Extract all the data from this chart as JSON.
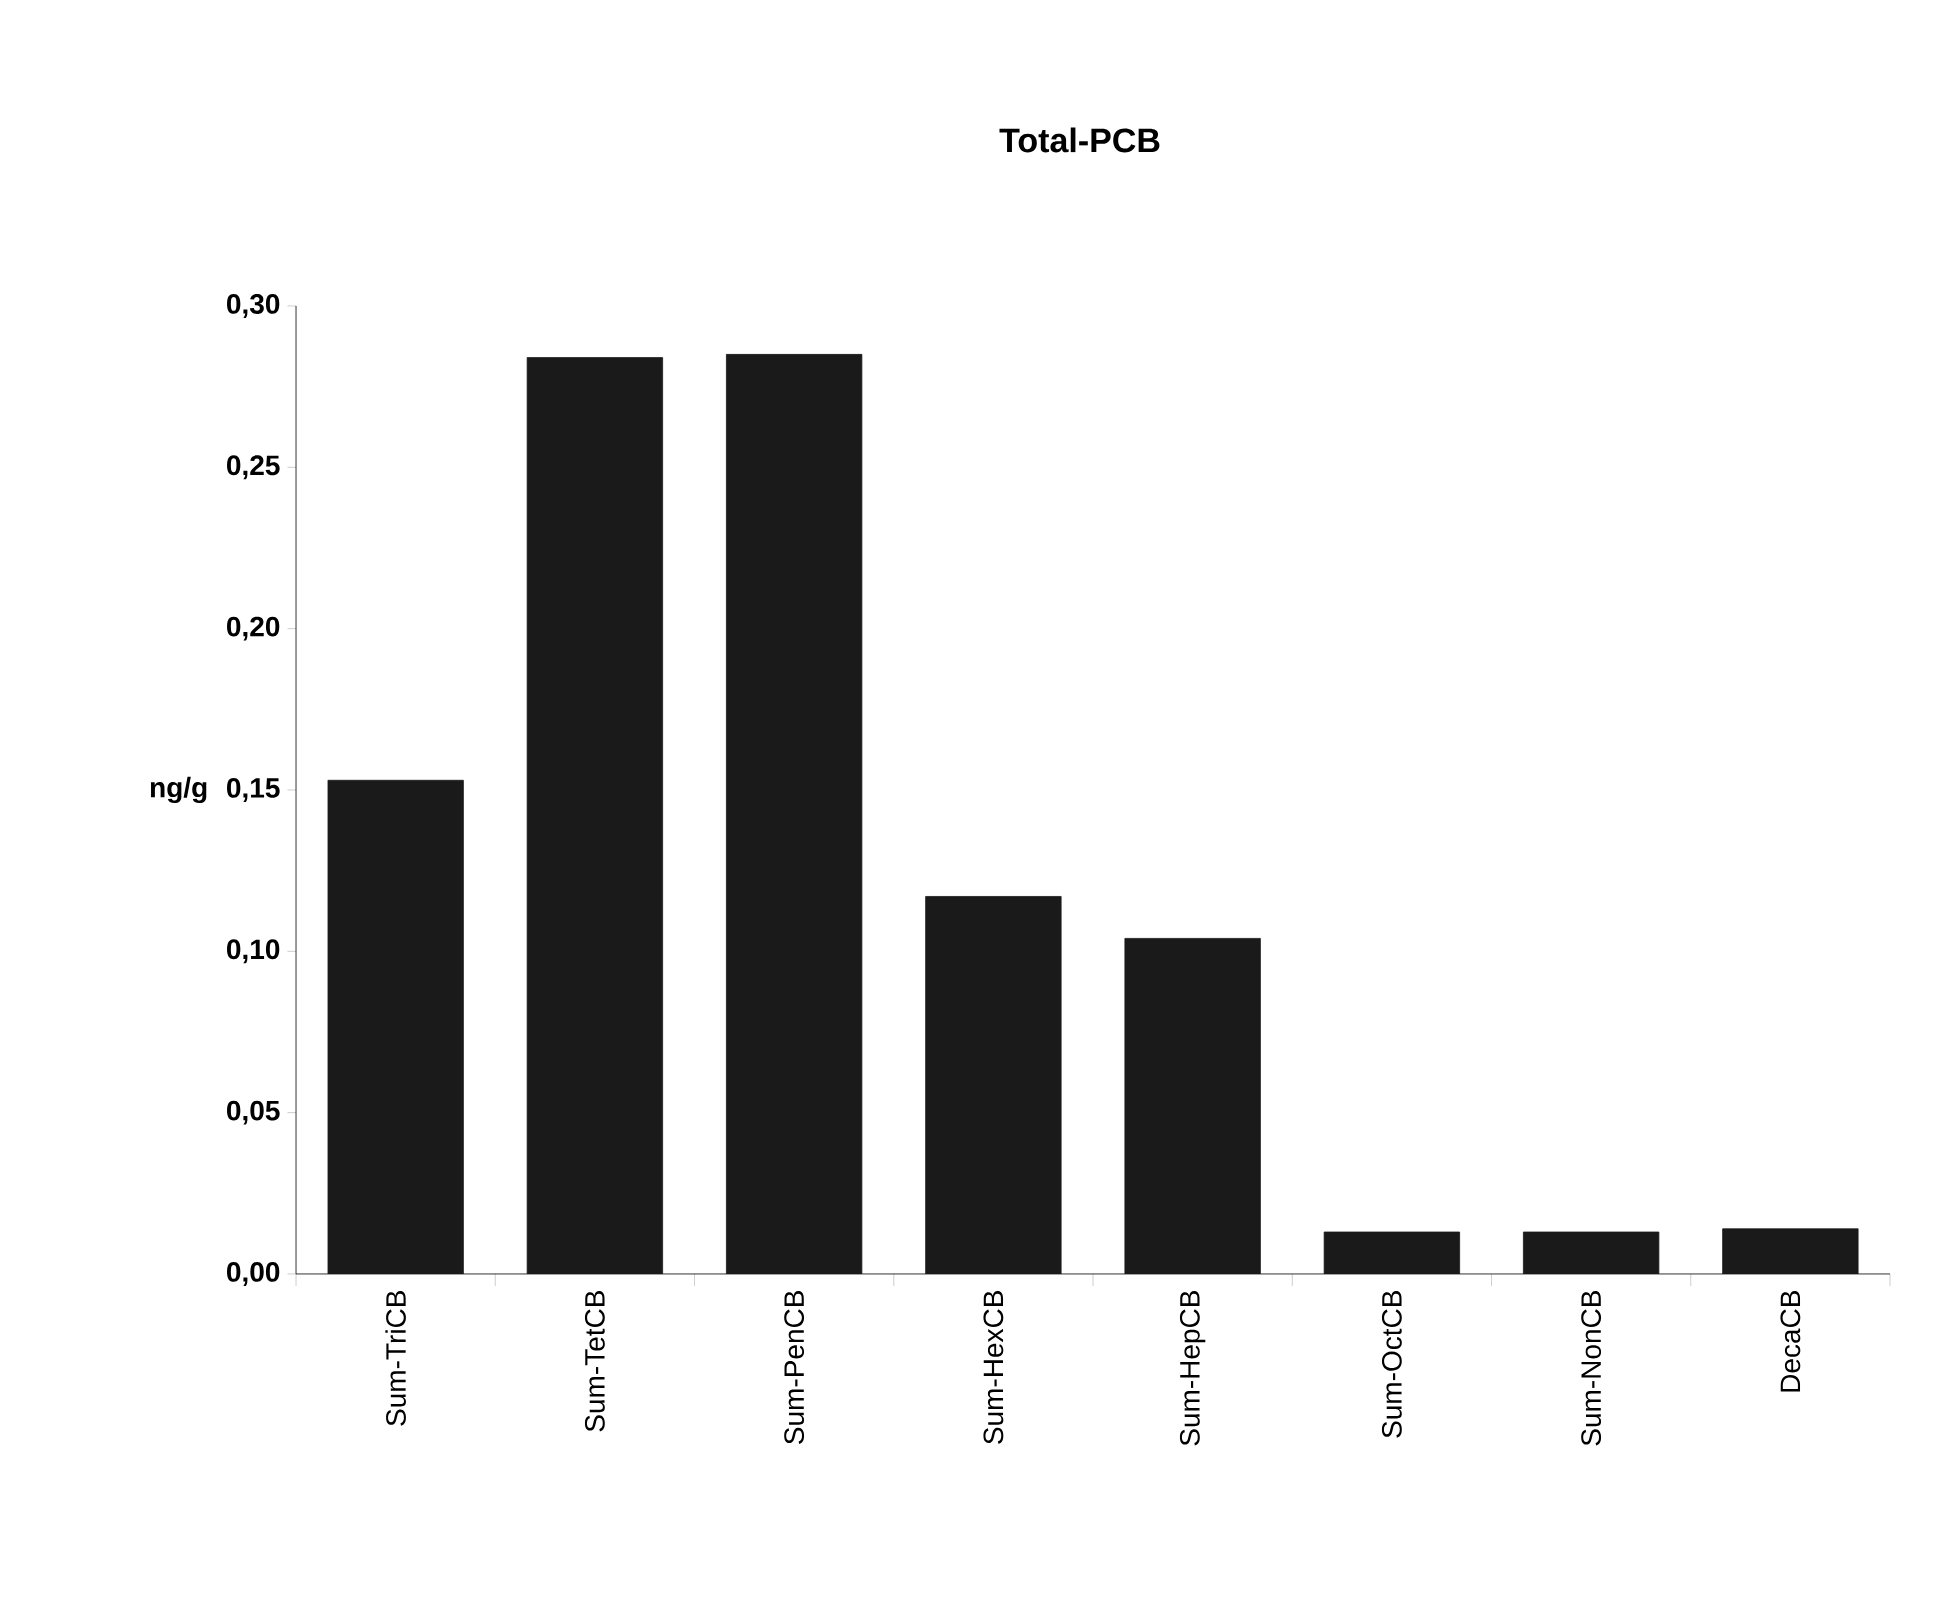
{
  "chart_data": {
    "type": "bar",
    "title": "Total-PCB",
    "ylabel": "ng/g",
    "categories": [
      "Sum-TriCB",
      "Sum-TetCB",
      "Sum-PenCB",
      "Sum-HexCB",
      "Sum-HepCB",
      "Sum-OctCB",
      "Sum-NonCB",
      "DecaCB"
    ],
    "values": [
      0.153,
      0.284,
      0.285,
      0.117,
      0.104,
      0.013,
      0.013,
      0.014
    ],
    "color": "#1a1a1a",
    "ylim": [
      0,
      0.3
    ],
    "yticks": [
      {
        "value": 0,
        "label": "0,00"
      },
      {
        "value": 0.05,
        "label": "0,05"
      },
      {
        "value": 0.1,
        "label": "0,10"
      },
      {
        "value": 0.15,
        "label": "0,15"
      },
      {
        "value": 0.2,
        "label": "0,20"
      },
      {
        "value": 0.25,
        "label": "0,25"
      },
      {
        "value": 0.3,
        "label": "0,30"
      }
    ],
    "grid": false
  }
}
